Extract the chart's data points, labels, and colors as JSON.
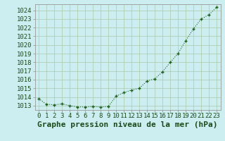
{
  "x": [
    0,
    1,
    2,
    3,
    4,
    5,
    6,
    7,
    8,
    9,
    10,
    11,
    12,
    13,
    14,
    15,
    16,
    17,
    18,
    19,
    20,
    21,
    22,
    23
  ],
  "y": [
    1013.8,
    1013.15,
    1013.1,
    1013.2,
    1013.0,
    1012.85,
    1012.85,
    1012.9,
    1012.85,
    1012.9,
    1014.1,
    1014.5,
    1014.8,
    1015.0,
    1015.85,
    1016.1,
    1016.9,
    1018.0,
    1019.0,
    1020.5,
    1021.85,
    1023.0,
    1023.5,
    1024.35
  ],
  "line_color": "#1a5c1a",
  "marker_color": "#1a5c1a",
  "bg_color": "#cdeef0",
  "grid_color": "#aacaaa",
  "ylabel_ticks": [
    1013,
    1014,
    1015,
    1016,
    1017,
    1018,
    1019,
    1020,
    1021,
    1022,
    1023,
    1024
  ],
  "xlabel": "Graphe pression niveau de la mer (hPa)",
  "xtick_labels": [
    "0",
    "1",
    "2",
    "3",
    "4",
    "5",
    "6",
    "7",
    "8",
    "9",
    "10",
    "11",
    "12",
    "13",
    "14",
    "15",
    "16",
    "17",
    "18",
    "19",
    "20",
    "21",
    "22",
    "23"
  ],
  "xlim": [
    -0.5,
    23.5
  ],
  "ylim": [
    1012.5,
    1024.7
  ],
  "tick_fontsize": 6.5,
  "xlabel_fontsize": 8
}
